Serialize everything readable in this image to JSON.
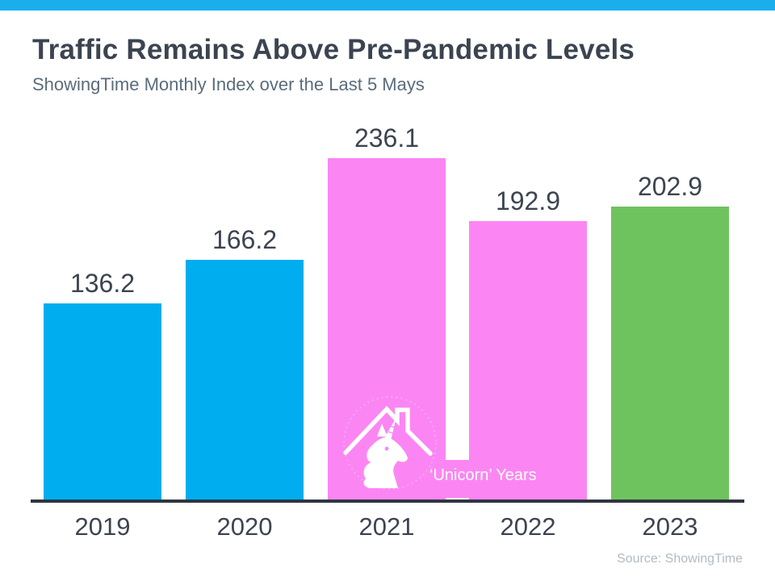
{
  "window": {
    "background": "#FFFFFF",
    "top_bar_color": "#1BAEEC"
  },
  "header": {
    "title": "Traffic Remains Above Pre-Pandemic Levels",
    "title_color": "#3B4450",
    "subtitle": "ShowingTime Monthly Index over the Last 5 Mays",
    "subtitle_color": "#5A6C7B"
  },
  "chart_data": {
    "type": "bar",
    "categories": [
      "2019",
      "2020",
      "2021",
      "2022",
      "2023"
    ],
    "values": [
      136.2,
      166.2,
      236.1,
      192.9,
      202.9
    ],
    "bar_colors": [
      "#00ADEE",
      "#00ADEE",
      "#FB86F3",
      "#FB86F3",
      "#6EC35F"
    ],
    "value_label_color": "#3D4450",
    "category_label_color": "#3D4450",
    "axis_color": "#2F3540",
    "ylim": [
      0,
      250
    ],
    "grid": false,
    "y_axis_visible": false,
    "legend": "none",
    "annotation": {
      "label": "‘Unicorn’ Years",
      "applies_to": [
        "2021",
        "2022"
      ],
      "text_color": "#FFFFFF",
      "icon": "unicorn-house-icon"
    }
  },
  "footer": {
    "source": "Source: ShowingTime",
    "source_color": "#B1BBC5"
  }
}
